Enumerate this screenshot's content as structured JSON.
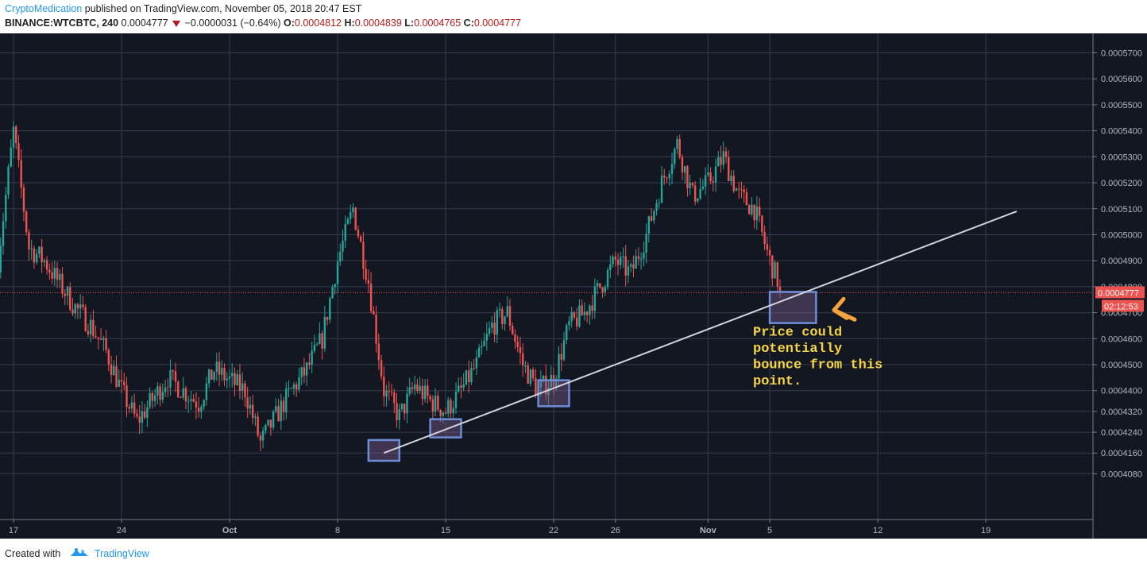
{
  "header": {
    "author": "CryptoMedication",
    "published": "published on TradingView.com, November 05, 2018 20:47 EST",
    "symbol": "BINANCE:WTCBTC, 240",
    "last": "0.0004777",
    "change": "−0.0000031 (−0.64%)",
    "o_label": "O:",
    "o_value": "0.0004812",
    "h_label": "H:",
    "h_value": "0.0004839",
    "l_label": "L:",
    "l_value": "0.0004765",
    "c_label": "C:",
    "c_value": "0.0004777"
  },
  "footer": {
    "created_with": "Created with",
    "brand": "TradingView"
  },
  "chart_data": {
    "type": "candlestick",
    "symbol": "BINANCE:WTCBTC",
    "interval": "240",
    "x_tick_labels": [
      "17",
      "24",
      "Oct",
      "8",
      "15",
      "22",
      "26",
      "Nov",
      "5",
      "12",
      "19"
    ],
    "y_tick_labels": [
      "0.0005700",
      "0.0005600",
      "0.0005500",
      "0.0005400",
      "0.0005300",
      "0.0005200",
      "0.0005100",
      "0.0005000",
      "0.0004900",
      "0.0004800",
      "0.0004700",
      "0.0004600",
      "0.0004500",
      "0.0004400",
      "0.0004320",
      "0.0004240",
      "0.0004160",
      "0.0004080"
    ],
    "price_tag": "0.0004777",
    "countdown": "02:12:53",
    "price_path": [
      [
        "2018-09-16",
        0.00049
      ],
      [
        "2018-09-17",
        0.00054
      ],
      [
        "2018-09-18",
        0.000495
      ],
      [
        "2018-09-19",
        0.00049
      ],
      [
        "2018-09-21",
        0.000472
      ],
      [
        "2018-09-22",
        0.000465
      ],
      [
        "2018-09-23",
        0.000455
      ],
      [
        "2018-09-24",
        0.00044
      ],
      [
        "2018-09-25",
        0.000428
      ],
      [
        "2018-09-27",
        0.000445
      ],
      [
        "2018-09-29",
        0.000435
      ],
      [
        "2018-09-30",
        0.000448
      ],
      [
        "2018-10-02",
        0.00044
      ],
      [
        "2018-10-03",
        0.00042
      ],
      [
        "2018-10-05",
        0.00044
      ],
      [
        "2018-10-06",
        0.000448
      ],
      [
        "2018-10-07",
        0.00046
      ],
      [
        "2018-10-08",
        0.00049
      ],
      [
        "2018-10-09",
        0.00051
      ],
      [
        "2018-10-10",
        0.000482
      ],
      [
        "2018-10-11",
        0.00044
      ],
      [
        "2018-10-12",
        0.00043
      ],
      [
        "2018-10-13",
        0.000442
      ],
      [
        "2018-10-14",
        0.000436
      ],
      [
        "2018-10-15",
        0.000432
      ],
      [
        "2018-10-16",
        0.00044
      ],
      [
        "2018-10-17",
        0.00045
      ],
      [
        "2018-10-18",
        0.000465
      ],
      [
        "2018-10-19",
        0.00047
      ],
      [
        "2018-10-20",
        0.00045
      ],
      [
        "2018-10-21",
        0.00044
      ],
      [
        "2018-10-22",
        0.000445
      ],
      [
        "2018-10-23",
        0.000465
      ],
      [
        "2018-10-24",
        0.00047
      ],
      [
        "2018-10-25",
        0.00048
      ],
      [
        "2018-10-26",
        0.00049
      ],
      [
        "2018-10-27",
        0.000485
      ],
      [
        "2018-10-28",
        0.0005
      ],
      [
        "2018-10-29",
        0.00052
      ],
      [
        "2018-10-30",
        0.000535
      ],
      [
        "2018-10-31",
        0.000515
      ],
      [
        "2018-11-01",
        0.00052
      ],
      [
        "2018-11-02",
        0.00053
      ],
      [
        "2018-11-03",
        0.000515
      ],
      [
        "2018-11-04",
        0.00051
      ],
      [
        "2018-11-05",
        0.00049
      ],
      [
        "2018-11-05T20:00",
        0.0004777
      ]
    ],
    "trendline": {
      "start": [
        "2018-10-11",
        0.000416
      ],
      "end": [
        "2018-11-21",
        0.000509
      ]
    },
    "highlight_boxes": [
      {
        "x": [
          "2018-10-10",
          "2018-10-12"
        ],
        "y": [
          0.000413,
          0.000421
        ]
      },
      {
        "x": [
          "2018-10-14",
          "2018-10-16"
        ],
        "y": [
          0.000422,
          0.000429
        ]
      },
      {
        "x": [
          "2018-10-21",
          "2018-10-23"
        ],
        "y": [
          0.000434,
          0.000444
        ]
      },
      {
        "x": [
          "2018-11-05",
          "2018-11-08"
        ],
        "y": [
          0.000466,
          0.000478
        ]
      }
    ],
    "annotation": "Price could\npotentially\nbounce from this\npoint.",
    "colors": {
      "up": "#26a69a",
      "down": "#ef5350",
      "background": "#131722",
      "grid": "#363c4e",
      "trendline": "#d1d4dc",
      "box_border": "#6d8dd6",
      "annotation": "#f5d547",
      "arrow": "#f5a33c"
    }
  }
}
